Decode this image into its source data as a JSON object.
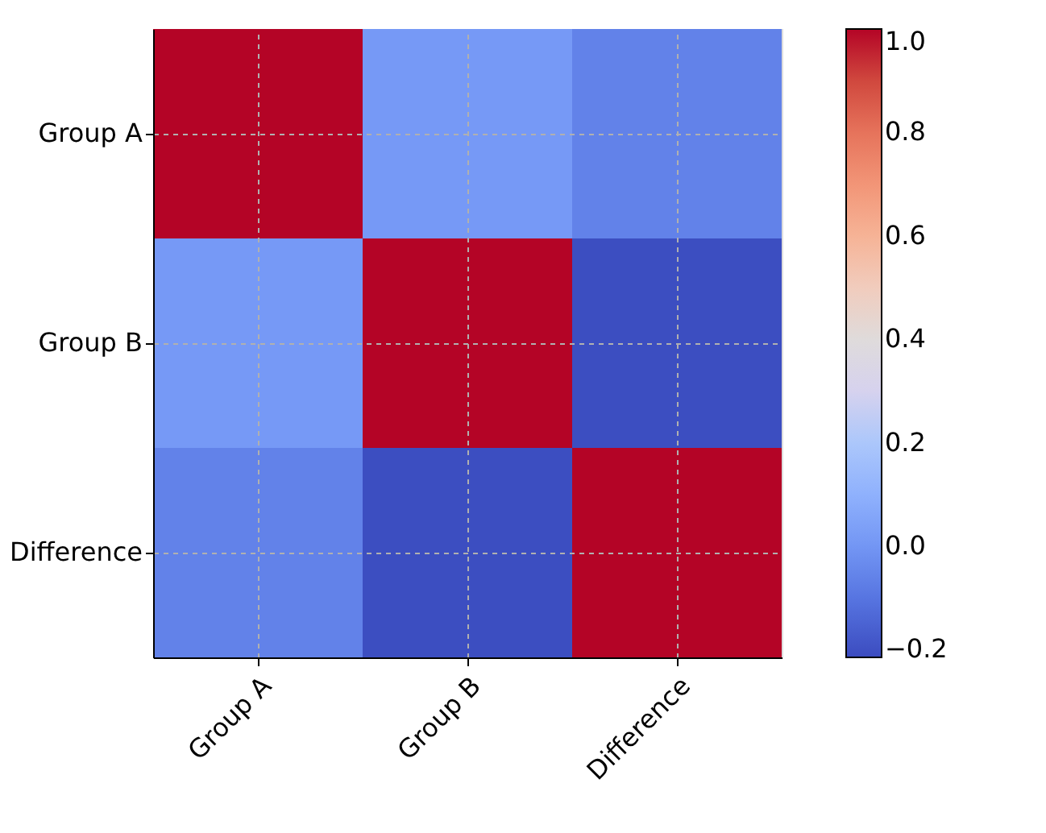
{
  "chart_data": {
    "type": "heatmap",
    "categories": [
      "Group A",
      "Group B",
      "Difference"
    ],
    "y_categories": [
      "Group A",
      "Group B",
      "Difference"
    ],
    "cells": [
      [
        1.0,
        0.01,
        -0.06
      ],
      [
        0.01,
        1.0,
        -0.21
      ],
      [
        -0.06,
        -0.21,
        1.0
      ]
    ],
    "clim": [
      -0.215,
      1.0
    ],
    "cticks": [
      {
        "value": -0.2,
        "label": "−0.2"
      },
      {
        "value": 0.0,
        "label": "0.0"
      },
      {
        "value": 0.2,
        "label": "0.2"
      },
      {
        "value": 0.4,
        "label": "0.4"
      },
      {
        "value": 0.6,
        "label": "0.6"
      },
      {
        "value": 0.8,
        "label": "0.8"
      },
      {
        "value": 1.0,
        "label": "1.0"
      }
    ],
    "grid": true
  }
}
